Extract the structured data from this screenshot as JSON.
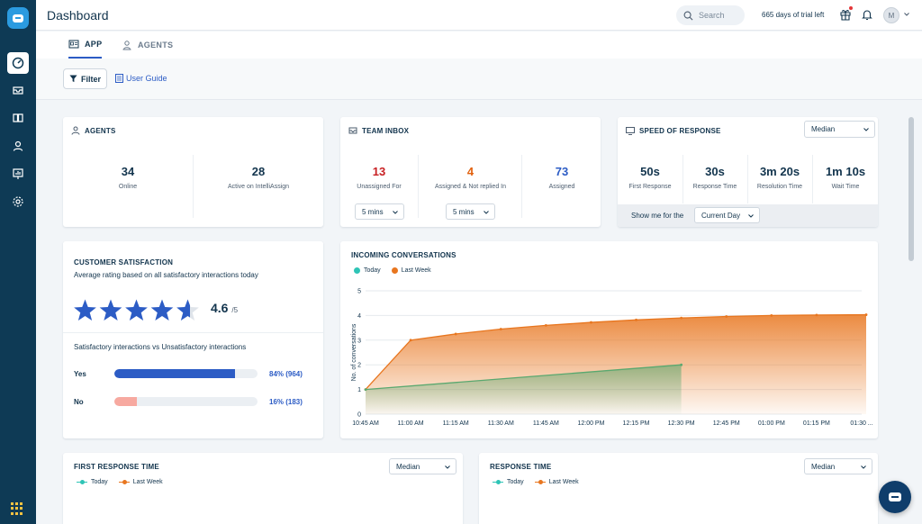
{
  "header": {
    "title": "Dashboard",
    "search_placeholder": "Search",
    "trial_text": "665 days of trial left",
    "avatar_initial": "M"
  },
  "tabs": [
    {
      "label": "APP",
      "active": true
    },
    {
      "label": "AGENTS",
      "active": false
    }
  ],
  "toolbar": {
    "filter_label": "Filter",
    "guide_label": "User Guide"
  },
  "agents_card": {
    "title": "AGENTS",
    "stats": [
      {
        "value": "34",
        "label": "Online"
      },
      {
        "value": "28",
        "label": "Active on IntelliAssign"
      }
    ]
  },
  "team_inbox": {
    "title": "TEAM INBOX",
    "stats": [
      {
        "value": "13",
        "label": "Unassigned For",
        "color": "#c82124"
      },
      {
        "value": "4",
        "label": "Assigned & Not replied In",
        "color": "#e2620f"
      },
      {
        "value": "73",
        "label": "Assigned",
        "color": "#2c5cc5"
      }
    ],
    "dropdowns": [
      "5 mins",
      "5 mins"
    ]
  },
  "speed_of_response": {
    "title": "SPEED OF RESPONSE",
    "metric_select": "Median",
    "stats": [
      {
        "value": "50s",
        "label": "First Response"
      },
      {
        "value": "30s",
        "label": "Response Time"
      },
      {
        "value": "3m 20s",
        "label": "Resolution Time"
      },
      {
        "value": "1m 10s",
        "label": "Wait Time"
      }
    ],
    "show_me_label": "Show me for the",
    "period_select": "Current Day"
  },
  "csat": {
    "title": "CUSTOMER SATISFACTION",
    "subtitle": "Average rating based on all satisfactory interactions today",
    "rating": "4.6",
    "rating_max": "/5",
    "stars": 4.6,
    "breakdown_title": "Satisfactory interactions vs Unsatisfactory interactions",
    "rows": [
      {
        "label": "Yes",
        "value": "84% (964)",
        "fraction": 0.84,
        "color": "#2c5cc5"
      },
      {
        "label": "No",
        "value": "16% (183)",
        "fraction": 0.16,
        "color": "#f7a9a0"
      }
    ]
  },
  "incoming": {
    "title": "INCOMING CONVERSATIONS",
    "colors": {
      "today": "#2ec4b6",
      "last_week": "#e8761f"
    }
  },
  "first_response_time": {
    "title": "FIRST RESPONSE TIME",
    "select": "Median",
    "legend": [
      "Today",
      "Last Week"
    ]
  },
  "response_time": {
    "title": "RESPONSE TIME",
    "select": "Median",
    "legend": [
      "Today",
      "Last Week"
    ]
  },
  "chart_data": {
    "type": "area",
    "title": "INCOMING CONVERSATIONS",
    "ylabel": "No. of conversations",
    "xlabel": "",
    "x": [
      "10:45 AM",
      "11:00 AM",
      "11:15 AM",
      "11:30 AM",
      "11:45 AM",
      "12:00 PM",
      "12:15 PM",
      "12:30 PM",
      "12:45 PM",
      "01:00 PM",
      "01:15 PM",
      "01:30 ..."
    ],
    "ylim": [
      0,
      5
    ],
    "yticks": [
      0,
      1,
      2,
      3,
      4,
      5
    ],
    "grid": true,
    "legend_position": "top-left",
    "series": [
      {
        "name": "Today",
        "values": [
          1,
          null,
          null,
          null,
          null,
          null,
          null,
          2,
          null,
          null,
          null,
          null
        ],
        "points": [
          [
            0,
            1
          ],
          [
            7,
            2
          ]
        ]
      },
      {
        "name": "Last Week",
        "values": [
          1,
          3,
          3.25,
          3.45,
          3.6,
          3.72,
          3.82,
          3.9,
          3.96,
          4.0,
          4.02,
          4.03
        ],
        "points": [
          [
            0,
            1
          ],
          [
            1,
            3
          ],
          [
            2,
            3.25
          ],
          [
            3,
            3.45
          ],
          [
            4,
            3.6
          ],
          [
            5,
            3.72
          ],
          [
            6,
            3.82
          ],
          [
            7,
            3.9
          ],
          [
            8,
            3.96
          ],
          [
            9,
            4.0
          ],
          [
            10,
            4.02
          ],
          [
            11.1,
            4.03
          ]
        ]
      }
    ]
  }
}
